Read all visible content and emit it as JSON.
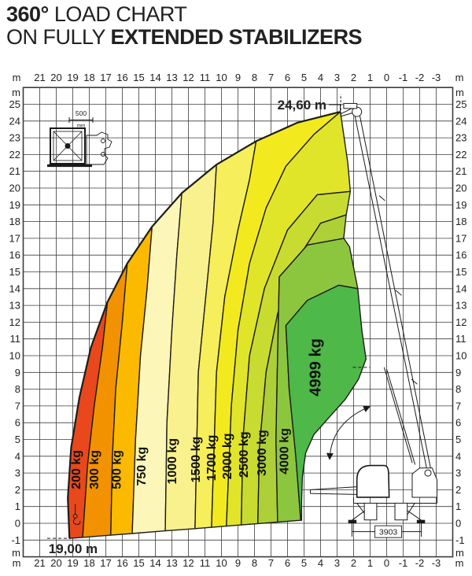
{
  "header": {
    "line1_bold": "360°",
    "line1_rest": " LOAD CHART",
    "line2_rest": "ON FULLY ",
    "line2_bold": "EXTENDED STABILIZERS"
  },
  "colors": {
    "outline": "#1d1d1b",
    "grid": "#3c3c3c",
    "text": "#232020",
    "machine": "#1a1a1a"
  },
  "chart_data": {
    "type": "area",
    "title": "360° load chart on fully extended stabilizers",
    "units": {
      "axes": "m",
      "load": "kg"
    },
    "axes": {
      "x": {
        "unit": "m",
        "ticks": [
          21,
          20,
          19,
          18,
          17,
          16,
          15,
          14,
          13,
          12,
          11,
          10,
          9,
          8,
          7,
          6,
          5,
          4,
          3,
          2,
          1,
          0,
          -1,
          -2,
          -3
        ]
      },
      "y": {
        "unit": "m",
        "ticks": [
          25,
          24,
          23,
          22,
          21,
          20,
          19,
          18,
          17,
          16,
          15,
          14,
          13,
          12,
          11,
          10,
          9,
          8,
          7,
          6,
          5,
          4,
          3,
          2,
          1,
          0,
          -1
        ]
      }
    },
    "grid": {
      "x_range": [
        -4,
        22
      ],
      "y_range": [
        -2,
        26
      ],
      "step": 1
    },
    "annotations": {
      "max_height": "24,60 m",
      "max_outreach": "19,00 m",
      "stabilizer_span": "3903",
      "pad_size": "500",
      "pad_size_unit": "mm"
    },
    "envelope": [
      [
        19.2,
        -0.9
      ],
      [
        19.3,
        1.5
      ],
      [
        19.1,
        4.5
      ],
      [
        18.6,
        7.5
      ],
      [
        17.9,
        10.5
      ],
      [
        16.9,
        13.2
      ],
      [
        15.7,
        15.5
      ],
      [
        14.2,
        17.7
      ],
      [
        12.4,
        19.7
      ],
      [
        10.3,
        21.4
      ],
      [
        7.9,
        22.8
      ],
      [
        5.4,
        23.9
      ],
      [
        2.8,
        24.55
      ]
    ],
    "zones": [
      {
        "label": "200 kg",
        "load_kg": 200,
        "color": "#e8481c",
        "label_pos": [
          18.55,
          3.2
        ],
        "label_size": 16,
        "points": [
          [
            19.2,
            -0.9
          ],
          [
            19.3,
            1.5
          ],
          [
            19.1,
            4.5
          ],
          [
            18.6,
            7.5
          ],
          [
            17.9,
            10.5
          ],
          [
            16.9,
            13.2
          ],
          [
            17.2,
            10.5
          ],
          [
            17.7,
            7.0
          ],
          [
            18.1,
            3.5
          ],
          [
            18.4,
            -0.84
          ]
        ]
      },
      {
        "label": "300 kg",
        "load_kg": 300,
        "color": "#f29200",
        "label_pos": [
          17.45,
          3.2
        ],
        "label_size": 16,
        "points": [
          [
            18.4,
            -0.84
          ],
          [
            18.1,
            3.5
          ],
          [
            17.7,
            7.0
          ],
          [
            17.2,
            10.5
          ],
          [
            16.9,
            13.2
          ],
          [
            15.7,
            15.5
          ],
          [
            16.0,
            12.0
          ],
          [
            16.4,
            8.0
          ],
          [
            16.6,
            4.0
          ],
          [
            16.7,
            -0.71
          ]
        ]
      },
      {
        "label": "500 kg",
        "load_kg": 500,
        "color": "#fbba00",
        "label_pos": [
          16.1,
          3.2
        ],
        "label_size": 16,
        "points": [
          [
            16.7,
            -0.71
          ],
          [
            16.6,
            4.0
          ],
          [
            16.4,
            8.0
          ],
          [
            16.0,
            12.0
          ],
          [
            15.7,
            15.5
          ],
          [
            14.2,
            17.7
          ],
          [
            14.5,
            14.0
          ],
          [
            14.9,
            10.0
          ],
          [
            15.2,
            5.0
          ],
          [
            15.4,
            -0.61
          ]
        ]
      },
      {
        "label": "750 kg",
        "load_kg": 750,
        "color": "#fcf6b8",
        "label_pos": [
          14.6,
          3.4
        ],
        "label_size": 16,
        "points": [
          [
            15.4,
            -0.61
          ],
          [
            15.2,
            5.0
          ],
          [
            14.9,
            10.0
          ],
          [
            14.5,
            14.0
          ],
          [
            14.2,
            17.7
          ],
          [
            12.4,
            19.7
          ],
          [
            12.7,
            16.0
          ],
          [
            13.0,
            11.5
          ],
          [
            13.3,
            6.0
          ],
          [
            13.4,
            -0.45
          ]
        ]
      },
      {
        "label": "1000 kg",
        "load_kg": 1000,
        "color": "#f9f18d",
        "label_pos": [
          12.75,
          3.7
        ],
        "label_size": 16,
        "points": [
          [
            13.4,
            -0.45
          ],
          [
            13.3,
            6.0
          ],
          [
            13.0,
            11.5
          ],
          [
            12.7,
            16.0
          ],
          [
            12.4,
            19.7
          ],
          [
            10.3,
            21.4
          ],
          [
            10.5,
            18.0
          ],
          [
            10.9,
            14.0
          ],
          [
            11.4,
            9.0
          ],
          [
            11.6,
            -0.32
          ]
        ]
      },
      {
        "label": "1500 kg",
        "load_kg": 1500,
        "color": "#f6ee5a",
        "label_pos": [
          11.3,
          3.8
        ],
        "label_size": 16,
        "points": [
          [
            11.6,
            -0.32
          ],
          [
            11.4,
            9.0
          ],
          [
            10.9,
            14.0
          ],
          [
            10.5,
            18.0
          ],
          [
            10.3,
            21.4
          ],
          [
            7.9,
            22.8
          ],
          [
            8.3,
            20.5
          ],
          [
            9.0,
            17.5
          ],
          [
            9.8,
            13.5
          ],
          [
            10.3,
            9.0
          ],
          [
            10.6,
            -0.24
          ]
        ]
      },
      {
        "label": "1700 kg",
        "load_kg": 1700,
        "color": "#f2ea1f",
        "label_pos": [
          10.35,
          3.9
        ],
        "label_size": 16,
        "points": [
          [
            10.6,
            -0.24
          ],
          [
            10.3,
            9.0
          ],
          [
            9.8,
            13.5
          ],
          [
            9.0,
            17.5
          ],
          [
            8.3,
            20.5
          ],
          [
            7.9,
            22.8
          ],
          [
            5.4,
            23.9
          ],
          [
            2.8,
            24.55
          ],
          [
            4.4,
            23.2
          ],
          [
            6.1,
            21.3
          ],
          [
            7.3,
            18.8
          ],
          [
            8.3,
            15.5
          ],
          [
            9.0,
            11.5
          ],
          [
            9.4,
            7.0
          ],
          [
            9.7,
            -0.17
          ]
        ]
      },
      {
        "label": "2000 kg",
        "load_kg": 2000,
        "color": "#e0e52a",
        "label_pos": [
          9.4,
          4.0
        ],
        "label_size": 16,
        "points": [
          [
            9.7,
            -0.17
          ],
          [
            9.4,
            7.0
          ],
          [
            9.0,
            11.5
          ],
          [
            8.3,
            15.5
          ],
          [
            7.3,
            18.8
          ],
          [
            6.1,
            21.3
          ],
          [
            4.4,
            23.2
          ],
          [
            2.8,
            24.55
          ],
          [
            2.35,
            21.5
          ],
          [
            2.2,
            19.8
          ],
          [
            4.2,
            19.6
          ],
          [
            6.0,
            17.5
          ],
          [
            7.4,
            14.0
          ],
          [
            8.3,
            10.0
          ],
          [
            8.7,
            5.0
          ],
          [
            8.8,
            -0.1
          ]
        ]
      },
      {
        "label": "2500 kg",
        "load_kg": 2500,
        "color": "#c8db31",
        "label_pos": [
          8.4,
          4.1
        ],
        "label_size": 16,
        "points": [
          [
            8.8,
            -0.1
          ],
          [
            8.7,
            5.0
          ],
          [
            8.3,
            10.0
          ],
          [
            7.4,
            14.0
          ],
          [
            6.0,
            17.5
          ],
          [
            4.2,
            19.6
          ],
          [
            2.2,
            19.8
          ],
          [
            2.45,
            18.4
          ],
          [
            4.0,
            17.9
          ],
          [
            5.5,
            15.6
          ],
          [
            6.6,
            12.5
          ],
          [
            7.3,
            9.0
          ],
          [
            7.7,
            4.5
          ],
          [
            7.8,
            -0.02
          ]
        ]
      },
      {
        "label": "3000 kg",
        "load_kg": 3000,
        "color": "#adcf38",
        "label_pos": [
          7.3,
          4.2
        ],
        "label_size": 16,
        "points": [
          [
            7.8,
            -0.02
          ],
          [
            7.7,
            4.5
          ],
          [
            7.3,
            9.0
          ],
          [
            6.6,
            12.5
          ],
          [
            5.5,
            15.6
          ],
          [
            4.0,
            17.9
          ],
          [
            2.45,
            18.4
          ],
          [
            2.6,
            17.0
          ],
          [
            4.8,
            16.6
          ],
          [
            6.5,
            14.7
          ],
          [
            6.6,
            10.0
          ],
          [
            6.7,
            5.0
          ],
          [
            6.6,
            0.07
          ]
        ]
      },
      {
        "label": "4000 kg",
        "load_kg": 4000,
        "color": "#8cc63e",
        "label_pos": [
          5.95,
          4.3
        ],
        "label_size": 16,
        "points": [
          [
            6.6,
            0.07
          ],
          [
            6.7,
            5.0
          ],
          [
            6.6,
            10.0
          ],
          [
            6.5,
            14.7
          ],
          [
            4.8,
            16.6
          ],
          [
            2.6,
            17.0
          ],
          [
            2.25,
            16.5
          ],
          [
            1.75,
            14.0
          ],
          [
            2.9,
            14.2
          ],
          [
            4.8,
            13.3
          ],
          [
            6.1,
            11.8
          ],
          [
            5.9,
            8.0
          ],
          [
            5.5,
            4.0
          ],
          [
            5.2,
            0.18
          ]
        ]
      },
      {
        "label": "4999 kg",
        "load_kg": 4999,
        "color": "#4eb848",
        "label_pos": [
          4.0,
          9.3
        ],
        "label_size": 20,
        "points": [
          [
            5.2,
            0.18
          ],
          [
            5.5,
            4.0
          ],
          [
            5.9,
            8.0
          ],
          [
            6.1,
            11.8
          ],
          [
            4.8,
            13.3
          ],
          [
            2.9,
            14.2
          ],
          [
            1.75,
            14.0
          ],
          [
            1.5,
            11.5
          ],
          [
            1.25,
            9.8
          ],
          [
            1.7,
            8.6
          ],
          [
            2.5,
            7.4
          ],
          [
            3.5,
            6.3
          ],
          [
            4.4,
            5.3
          ],
          [
            4.9,
            4.2
          ],
          [
            5.1,
            2.8
          ],
          [
            5.15,
            1.3
          ],
          [
            5.15,
            0.18
          ]
        ]
      }
    ]
  }
}
